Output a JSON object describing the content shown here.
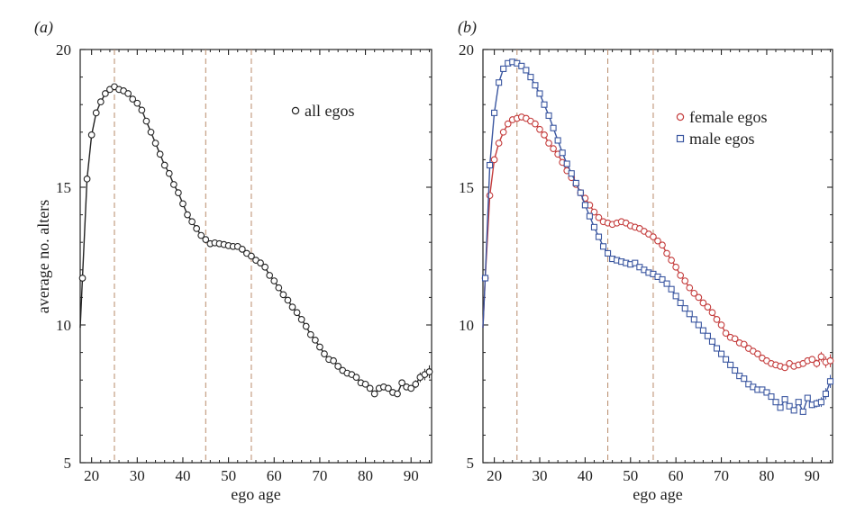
{
  "panels": {
    "a": {
      "label": "(a)",
      "xlabel": "ego age",
      "ylabel": "average no. alters"
    },
    "b": {
      "label": "(b)",
      "xlabel": "ego age",
      "ylabel": ""
    }
  },
  "colors": {
    "all": "#222222",
    "female": "#c43c3c",
    "male": "#3a56a0",
    "vline": "#b88a6a"
  },
  "chart_data": [
    {
      "type": "line",
      "panel": "a",
      "title": "",
      "xlabel": "ego age",
      "ylabel": "average no. alters",
      "xlim": [
        17.5,
        94.5
      ],
      "ylim": [
        5,
        20
      ],
      "xticks": [
        20,
        30,
        40,
        50,
        60,
        70,
        80,
        90
      ],
      "yticks": [
        5,
        10,
        15,
        20
      ],
      "vlines": [
        25,
        45,
        55
      ],
      "legend_position": "top-right",
      "series": [
        {
          "name": "all egos",
          "marker": "circle",
          "x": [
            18,
            19,
            20,
            21,
            22,
            23,
            24,
            25,
            26,
            27,
            28,
            29,
            30,
            31,
            32,
            33,
            34,
            35,
            36,
            37,
            38,
            39,
            40,
            41,
            42,
            43,
            44,
            45,
            46,
            47,
            48,
            49,
            50,
            51,
            52,
            53,
            54,
            55,
            56,
            57,
            58,
            59,
            60,
            61,
            62,
            63,
            64,
            65,
            66,
            67,
            68,
            69,
            70,
            71,
            72,
            73,
            74,
            75,
            76,
            77,
            78,
            79,
            80,
            81,
            82,
            83,
            84,
            85,
            86,
            87,
            88,
            89,
            90,
            91,
            92,
            93,
            94
          ],
          "values": [
            11.7,
            15.3,
            16.9,
            17.7,
            18.1,
            18.4,
            18.55,
            18.65,
            18.55,
            18.5,
            18.4,
            18.2,
            18.05,
            17.8,
            17.4,
            17.0,
            16.6,
            16.2,
            15.8,
            15.5,
            15.1,
            14.8,
            14.4,
            14.0,
            13.75,
            13.5,
            13.25,
            13.1,
            12.95,
            12.98,
            12.95,
            12.92,
            12.88,
            12.85,
            12.85,
            12.75,
            12.6,
            12.5,
            12.35,
            12.25,
            12.1,
            11.8,
            11.6,
            11.35,
            11.1,
            10.9,
            10.65,
            10.45,
            10.2,
            9.95,
            9.65,
            9.45,
            9.2,
            8.95,
            8.75,
            8.7,
            8.5,
            8.35,
            8.25,
            8.2,
            8.1,
            7.9,
            7.85,
            7.7,
            7.5,
            7.7,
            7.75,
            7.7,
            7.55,
            7.5,
            7.9,
            7.75,
            7.7,
            7.85,
            8.1,
            8.2,
            8.3
          ]
        }
      ]
    },
    {
      "type": "line",
      "panel": "b",
      "title": "",
      "xlabel": "ego age",
      "ylabel": "",
      "xlim": [
        17.5,
        94.5
      ],
      "ylim": [
        5,
        20
      ],
      "xticks": [
        20,
        30,
        40,
        50,
        60,
        70,
        80,
        90
      ],
      "yticks": [
        5,
        10,
        15,
        20
      ],
      "vlines": [
        25,
        45,
        55
      ],
      "legend_position": "top-right",
      "series": [
        {
          "name": "female egos",
          "marker": "circle",
          "color_key": "female",
          "x": [
            18,
            19,
            20,
            21,
            22,
            23,
            24,
            25,
            26,
            27,
            28,
            29,
            30,
            31,
            32,
            33,
            34,
            35,
            36,
            37,
            38,
            39,
            40,
            41,
            42,
            43,
            44,
            45,
            46,
            47,
            48,
            49,
            50,
            51,
            52,
            53,
            54,
            55,
            56,
            57,
            58,
            59,
            60,
            61,
            62,
            63,
            64,
            65,
            66,
            67,
            68,
            69,
            70,
            71,
            72,
            73,
            74,
            75,
            76,
            77,
            78,
            79,
            80,
            81,
            82,
            83,
            84,
            85,
            86,
            87,
            88,
            89,
            90,
            91,
            92,
            93,
            94
          ],
          "values": [
            11.7,
            14.7,
            16.0,
            16.6,
            17.0,
            17.3,
            17.45,
            17.5,
            17.55,
            17.5,
            17.4,
            17.3,
            17.1,
            16.9,
            16.6,
            16.4,
            16.2,
            15.9,
            15.6,
            15.35,
            15.1,
            14.8,
            14.6,
            14.35,
            14.1,
            13.9,
            13.75,
            13.7,
            13.65,
            13.7,
            13.75,
            13.7,
            13.6,
            13.55,
            13.5,
            13.4,
            13.3,
            13.2,
            13.05,
            12.9,
            12.6,
            12.35,
            12.1,
            11.8,
            11.6,
            11.35,
            11.15,
            11.0,
            10.8,
            10.65,
            10.45,
            10.2,
            10.0,
            9.7,
            9.55,
            9.5,
            9.35,
            9.3,
            9.15,
            9.05,
            8.95,
            8.8,
            8.7,
            8.6,
            8.55,
            8.5,
            8.45,
            8.6,
            8.5,
            8.55,
            8.6,
            8.7,
            8.75,
            8.6,
            8.85,
            8.65,
            8.7
          ]
        },
        {
          "name": "male egos",
          "marker": "square",
          "color_key": "male",
          "x": [
            18,
            19,
            20,
            21,
            22,
            23,
            24,
            25,
            26,
            27,
            28,
            29,
            30,
            31,
            32,
            33,
            34,
            35,
            36,
            37,
            38,
            39,
            40,
            41,
            42,
            43,
            44,
            45,
            46,
            47,
            48,
            49,
            50,
            51,
            52,
            53,
            54,
            55,
            56,
            57,
            58,
            59,
            60,
            61,
            62,
            63,
            64,
            65,
            66,
            67,
            68,
            69,
            70,
            71,
            72,
            73,
            74,
            75,
            76,
            77,
            78,
            79,
            80,
            81,
            82,
            83,
            84,
            85,
            86,
            87,
            88,
            89,
            90,
            91,
            92,
            93,
            94
          ],
          "values": [
            11.7,
            15.8,
            17.7,
            18.8,
            19.3,
            19.5,
            19.55,
            19.5,
            19.4,
            19.25,
            19.0,
            18.7,
            18.4,
            18.0,
            17.6,
            17.15,
            16.7,
            16.25,
            15.85,
            15.5,
            15.15,
            14.8,
            14.35,
            13.95,
            13.55,
            13.2,
            12.85,
            12.6,
            12.4,
            12.35,
            12.3,
            12.25,
            12.2,
            12.25,
            12.1,
            12.0,
            11.9,
            11.85,
            11.75,
            11.65,
            11.5,
            11.3,
            11.05,
            10.8,
            10.6,
            10.4,
            10.2,
            10.0,
            9.8,
            9.6,
            9.4,
            9.15,
            8.95,
            8.75,
            8.55,
            8.35,
            8.15,
            8.05,
            7.85,
            7.75,
            7.65,
            7.65,
            7.55,
            7.4,
            7.2,
            7.0,
            7.3,
            7.05,
            6.9,
            7.2,
            6.85,
            7.35,
            7.1,
            7.15,
            7.2,
            7.5,
            7.95
          ]
        }
      ]
    }
  ]
}
